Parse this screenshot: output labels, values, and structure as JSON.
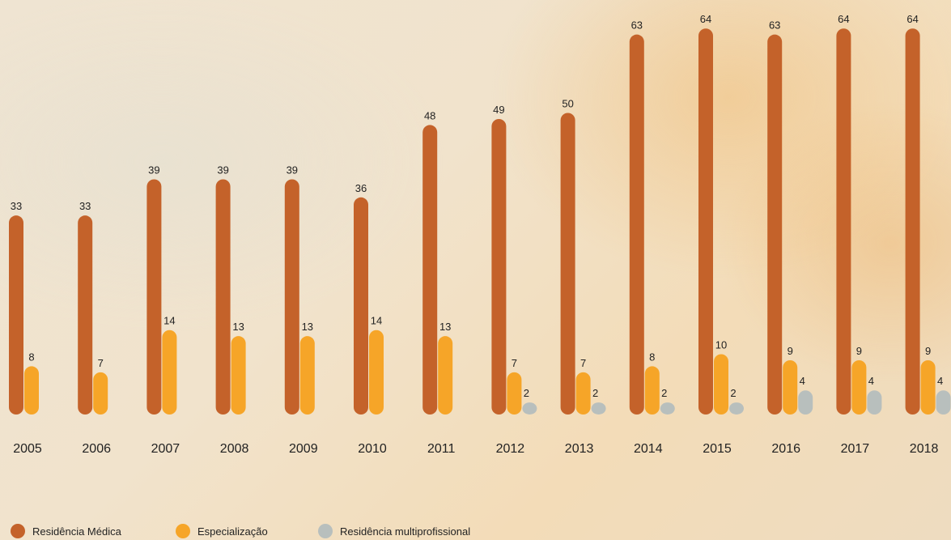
{
  "chart_data": {
    "type": "bar",
    "categories": [
      "2005",
      "2006",
      "2007",
      "2008",
      "2009",
      "2010",
      "2011",
      "2012",
      "2013",
      "2014",
      "2015",
      "2016",
      "2017",
      "2018"
    ],
    "series": [
      {
        "name": "Residência Médica",
        "color": "#c4622a",
        "values": [
          33,
          33,
          39,
          39,
          39,
          36,
          48,
          49,
          50,
          63,
          64,
          63,
          64,
          64
        ]
      },
      {
        "name": "Especialização",
        "color": "#f6a528",
        "values": [
          8,
          7,
          14,
          13,
          13,
          14,
          13,
          7,
          7,
          8,
          10,
          9,
          9,
          9
        ]
      },
      {
        "name": "Residência multiprofissional",
        "color": "#b8bfbd",
        "values": [
          null,
          null,
          null,
          null,
          null,
          null,
          null,
          2,
          2,
          2,
          2,
          4,
          4,
          4
        ]
      }
    ]
  }
}
